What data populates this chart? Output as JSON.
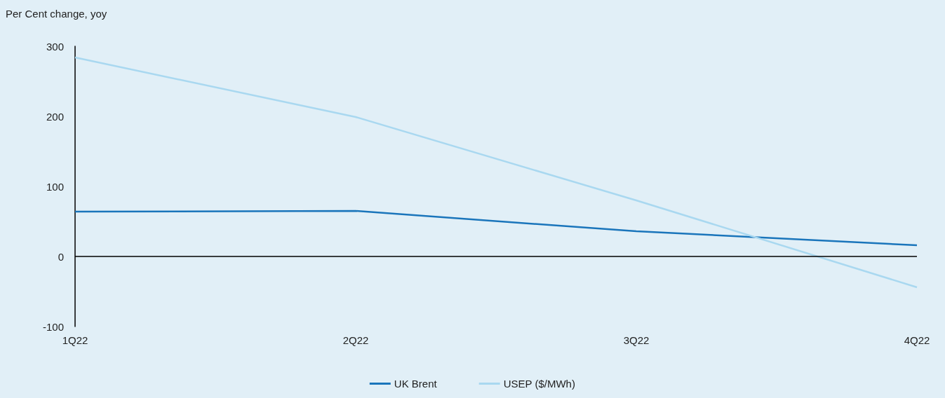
{
  "chart_data": {
    "type": "line",
    "ylabel": "Per Cent change, yoy",
    "categories": [
      "1Q22",
      "2Q22",
      "3Q22",
      "4Q22"
    ],
    "series": [
      {
        "name": "UK Brent",
        "color": "#1a75bb",
        "values": [
          64,
          65,
          36,
          16
        ]
      },
      {
        "name": "USEP ($/MWh)",
        "color": "#a9d8f0",
        "values": [
          284,
          199,
          80,
          -44
        ]
      }
    ],
    "ref_lines": [
      {
        "axis": "y",
        "value": 0,
        "color": "#000000"
      }
    ],
    "ylim": [
      -100,
      300
    ],
    "yticks": [
      -100,
      0,
      100,
      200,
      300
    ],
    "grid": false,
    "legend": "bottom",
    "marker": "none",
    "line_style": "solid"
  }
}
